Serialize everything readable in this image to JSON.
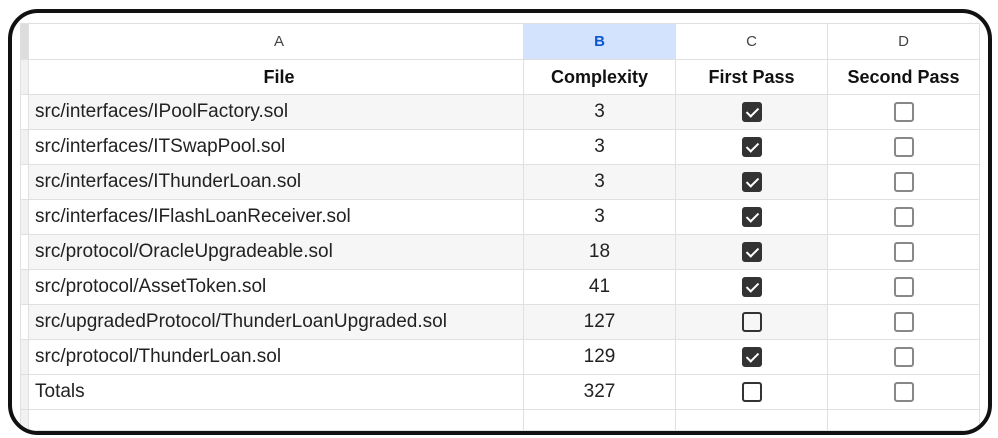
{
  "columns": [
    "A",
    "B",
    "C",
    "D"
  ],
  "selected_column": "B",
  "headers": {
    "file": "File",
    "complexity": "Complexity",
    "first_pass": "First Pass",
    "second_pass": "Second Pass"
  },
  "rows": [
    {
      "file": "src/interfaces/IPoolFactory.sol",
      "complexity": "3",
      "first_pass": true,
      "second_pass": false
    },
    {
      "file": "src/interfaces/ITSwapPool.sol",
      "complexity": "3",
      "first_pass": true,
      "second_pass": false
    },
    {
      "file": "src/interfaces/IThunderLoan.sol",
      "complexity": "3",
      "first_pass": true,
      "second_pass": false
    },
    {
      "file": "src/interfaces/IFlashLoanReceiver.sol",
      "complexity": "3",
      "first_pass": true,
      "second_pass": false
    },
    {
      "file": "src/protocol/OracleUpgradeable.sol",
      "complexity": "18",
      "first_pass": true,
      "second_pass": false
    },
    {
      "file": "src/protocol/AssetToken.sol",
      "complexity": "41",
      "first_pass": true,
      "second_pass": false
    },
    {
      "file": "src/upgradedProtocol/ThunderLoanUpgraded.sol",
      "complexity": "127",
      "first_pass": false,
      "second_pass": false
    },
    {
      "file": "src/protocol/ThunderLoan.sol",
      "complexity": "129",
      "first_pass": true,
      "second_pass": false
    },
    {
      "file": "Totals",
      "complexity": "327",
      "first_pass": false,
      "second_pass": false
    }
  ]
}
